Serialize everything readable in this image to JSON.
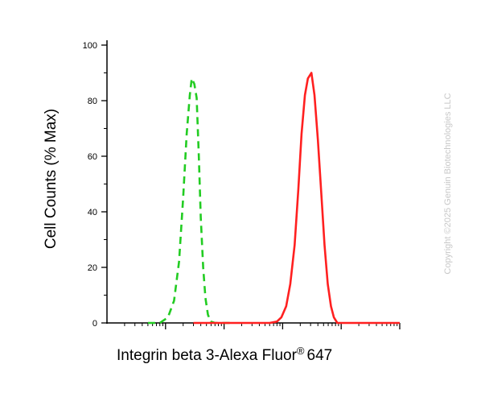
{
  "chart_data": {
    "type": "line",
    "title": "",
    "xlabel": "Integrin beta 3-Alexa Fluor",
    "xlabel_sup": "®",
    "xlabel_suffix": "647",
    "ylabel": "Cell Counts (% Max)",
    "x_scale": "log",
    "xlim": [
      0,
      100000
    ],
    "ylim": [
      0,
      100
    ],
    "y_ticks": [
      "0",
      "20",
      "40",
      "60",
      "80",
      "100"
    ],
    "grid": false,
    "series": [
      {
        "color": "#22cc22",
        "style": "dashed",
        "points": [
          [
            5,
            0
          ],
          [
            8,
            0
          ],
          [
            11,
            2
          ],
          [
            14,
            8
          ],
          [
            17,
            22
          ],
          [
            20,
            45
          ],
          [
            23,
            68
          ],
          [
            26,
            82
          ],
          [
            28,
            88
          ],
          [
            31,
            86
          ],
          [
            34,
            81
          ],
          [
            37,
            60
          ],
          [
            40,
            38
          ],
          [
            44,
            20
          ],
          [
            48,
            9
          ],
          [
            53,
            3
          ],
          [
            59,
            0.5
          ],
          [
            70,
            0
          ],
          [
            150,
            0
          ]
        ]
      },
      {
        "color": "#ff2020",
        "style": "solid",
        "points": [
          [
            30,
            0
          ],
          [
            300,
            0
          ],
          [
            600,
            0
          ],
          [
            800,
            0.5
          ],
          [
            950,
            2
          ],
          [
            1150,
            6
          ],
          [
            1350,
            14
          ],
          [
            1600,
            28
          ],
          [
            1850,
            48
          ],
          [
            2100,
            68
          ],
          [
            2400,
            82
          ],
          [
            2700,
            88
          ],
          [
            3100,
            90
          ],
          [
            3500,
            82
          ],
          [
            4000,
            66
          ],
          [
            4600,
            46
          ],
          [
            5200,
            28
          ],
          [
            5900,
            14
          ],
          [
            6700,
            6
          ],
          [
            7500,
            2
          ],
          [
            8600,
            0
          ],
          [
            12000,
            0
          ],
          [
            100000,
            0
          ]
        ]
      }
    ]
  },
  "watermark": "Copyright ©2025 Genuin Biotechnologies LLC",
  "colors": {
    "axis": "#000000",
    "series1": "#22cc22",
    "series2": "#ff2020",
    "watermark": "#c8c8c8"
  }
}
